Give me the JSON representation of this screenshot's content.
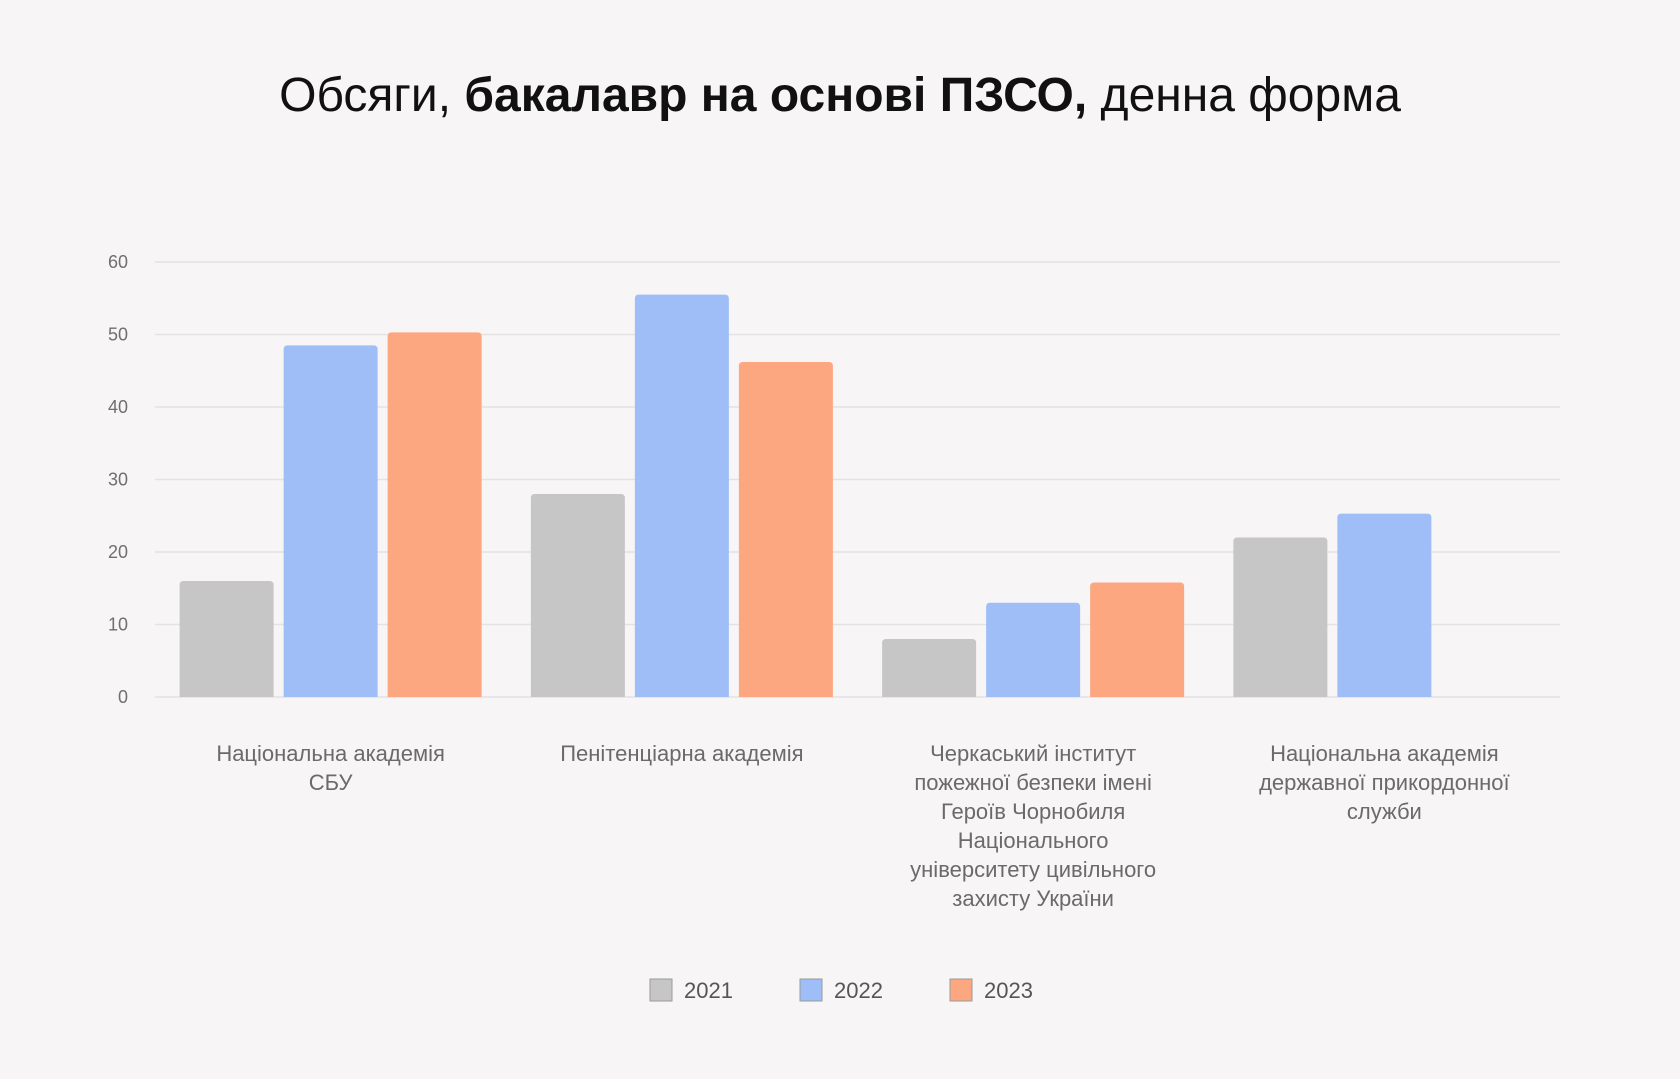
{
  "title": {
    "prefix": "Обсяги, ",
    "bold": "бакалавр на основі ПЗСО,",
    "suffix": " денна форма"
  },
  "chart_data": {
    "type": "bar",
    "title": "Обсяги, бакалавр на основі ПЗСО, денна форма",
    "xlabel": "",
    "ylabel": "",
    "ylim": [
      0,
      60
    ],
    "yticks": [
      0,
      10,
      20,
      30,
      40,
      50,
      60
    ],
    "grid": true,
    "legend_position": "bottom-center",
    "categories": [
      [
        "Національна академія",
        "СБУ"
      ],
      [
        "Пенітенціарна академія"
      ],
      [
        "Черкаський інститут",
        "пожежної безпеки імені",
        "Героїв Чорнобиля",
        "Національного",
        "університету цивільного",
        "захисту України"
      ],
      [
        "Національна академія",
        "державної прикордонної",
        "служби"
      ]
    ],
    "series": [
      {
        "name": "2021",
        "color": "#c6c6c6",
        "values": [
          16,
          28,
          8,
          22
        ]
      },
      {
        "name": "2022",
        "color": "#9fbef7",
        "values": [
          48.5,
          55.5,
          13,
          25.3
        ]
      },
      {
        "name": "2023",
        "color": "#fda781",
        "values": [
          50.3,
          46.2,
          15.8,
          null
        ]
      }
    ]
  }
}
